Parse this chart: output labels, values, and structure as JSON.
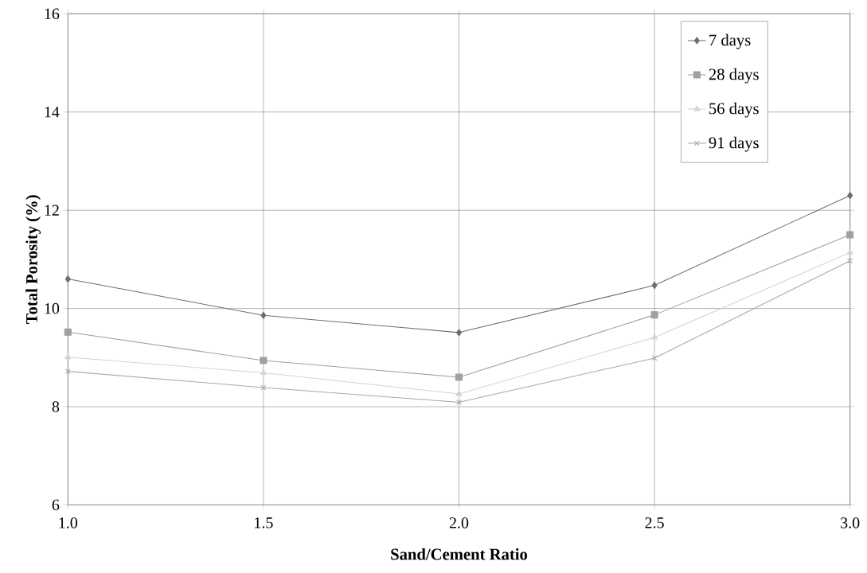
{
  "chart_data": {
    "type": "line",
    "xlabel": "Sand/Cement Ratio",
    "ylabel": "Total Porosity (%)",
    "x": [
      1.0,
      1.5,
      2.0,
      2.5,
      3.0
    ],
    "series": [
      {
        "name": "7 days",
        "color": "#6e6e6e",
        "marker": "diamond",
        "values": [
          10.6,
          9.86,
          9.51,
          10.47,
          12.3
        ]
      },
      {
        "name": "28 days",
        "color": "#a0a0a0",
        "marker": "square",
        "values": [
          9.52,
          8.94,
          8.6,
          9.87,
          11.5
        ]
      },
      {
        "name": "56 days",
        "color": "#d4d4d4",
        "marker": "triangle",
        "values": [
          9.01,
          8.69,
          8.26,
          9.41,
          11.14
        ]
      },
      {
        "name": "91 days",
        "color": "#a8a8a8",
        "marker": "cross",
        "values": [
          8.72,
          8.39,
          8.09,
          8.99,
          10.97
        ]
      }
    ],
    "xlim": [
      1.0,
      3.0
    ],
    "xticks": [
      {
        "value": 1.0,
        "label": "1.0"
      },
      {
        "value": 1.5,
        "label": "1.5"
      },
      {
        "value": 2.0,
        "label": "2.0"
      },
      {
        "value": 2.5,
        "label": "2.5"
      },
      {
        "value": 3.0,
        "label": "3.0"
      }
    ],
    "ylim": [
      6,
      16
    ],
    "yticks": [
      6,
      8,
      10,
      12,
      14,
      16
    ],
    "grid": true,
    "legend": "top right",
    "line_style": "solid"
  }
}
